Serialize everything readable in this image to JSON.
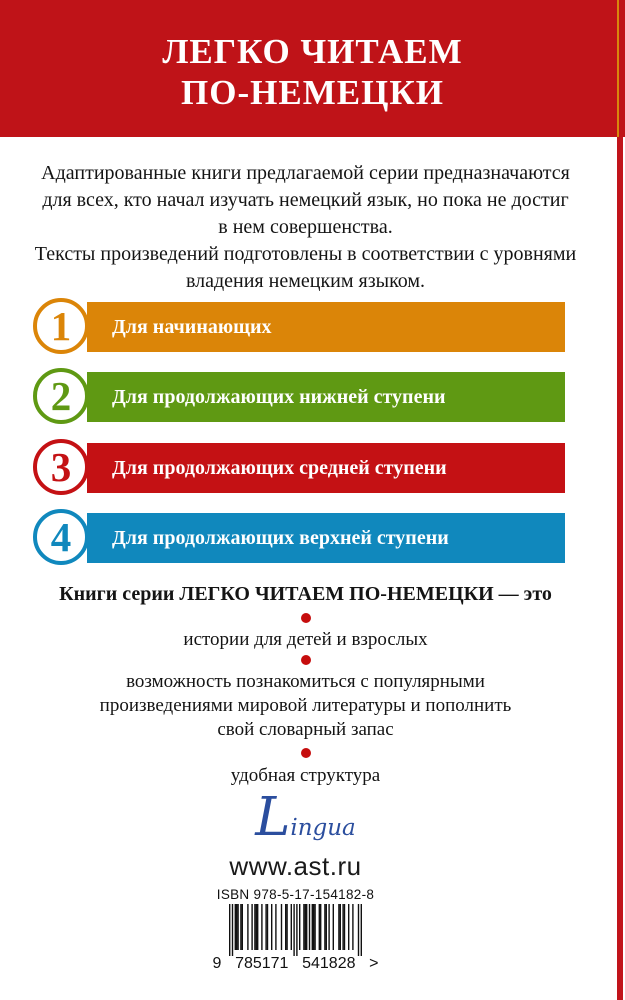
{
  "header": {
    "title_lines": [
      "ЛЕГКО ЧИТАЕМ",
      "ПО-НЕМЕЦКИ"
    ]
  },
  "intro": {
    "lines": [
      "Адаптированные книги предлагаемой серии предназначаются",
      "для всех, кто начал изучать немецкий язык, но пока не достиг",
      "в нем совершенства.",
      "Тексты произведений подготовлены в соответствии с уровнями",
      "владения немецким языком."
    ]
  },
  "levels": {
    "items": [
      {
        "number": "1",
        "label": "Для начинающих",
        "color": "#DB8508"
      },
      {
        "number": "2",
        "label": "Для продолжающих нижней ступени",
        "color": "#5F9913"
      },
      {
        "number": "3",
        "label": "Для продолжающих средней ступени",
        "color": "#C41114"
      },
      {
        "number": "4",
        "label": "Для продолжающих верхней ступени",
        "color": "#1088BD"
      }
    ]
  },
  "series": {
    "heading": "Книги серии ЛЕГКО ЧИТАЕМ ПО-НЕМЕЦКИ — это",
    "features": [
      "истории для детей и взрослых",
      "возможность познакомиться с популярными произведениями мировой литературы и пополнить свой словарный запас",
      "удобная структура"
    ],
    "bullet_color": "#C60D0D"
  },
  "footer": {
    "logo_text": "Lingua",
    "logo_color": "#2B4E9E",
    "website": "www.ast.ru",
    "isbn_label": "ISBN 978-5-17-154182-8",
    "barcode": {
      "number": "9785171541828",
      "groups": [
        "9",
        "785171",
        "541828",
        ">"
      ]
    }
  },
  "colors": {
    "header_bg": "#BF1318",
    "edge_stripe": "#C1131A"
  }
}
